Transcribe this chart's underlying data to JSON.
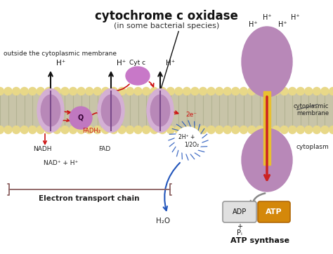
{
  "title": "cytochrome c oxidase",
  "subtitle": "(in some bacterial species)",
  "bg_color": "#ffffff",
  "phospholipid_head_color": "#e8d888",
  "membrane_gray": "#c8c4a8",
  "protein_outer": "#d4b0d4",
  "protein_inner": "#b888b8",
  "protein_line": "#7a4a8a",
  "ubiquinone_color": "#c078c0",
  "cyt_c_color": "#c878c8",
  "atp_body_color": "#b888b8",
  "stalk_yellow": "#e8c030",
  "stalk_red": "#cc2222",
  "arrow_red": "#cc1111",
  "arrow_blue": "#2255bb",
  "arrow_black": "#111111",
  "arrow_gray": "#888888",
  "text_outside": "outside the cytoplasmic membrane",
  "text_cytoplasm": "cytoplasm",
  "text_membrane": "cytoplasmic\nmembrane",
  "text_etc": "Electron transport chain",
  "text_atpsyn": "ATP synthase",
  "text_nadh": "NADH",
  "text_fadh2": "FADH₂",
  "text_fad": "FAD",
  "text_nadplus": "NAD⁺ + H⁺",
  "text_cytc": "Cyt c",
  "text_2eminus": "2e⁻",
  "text_2hplus": "2H⁺ +",
  "text_half_o2": "1/2O₂",
  "text_h2o": "H₂O",
  "text_adp": "ADP",
  "text_atp": "ATP",
  "text_hplus": "H⁺"
}
